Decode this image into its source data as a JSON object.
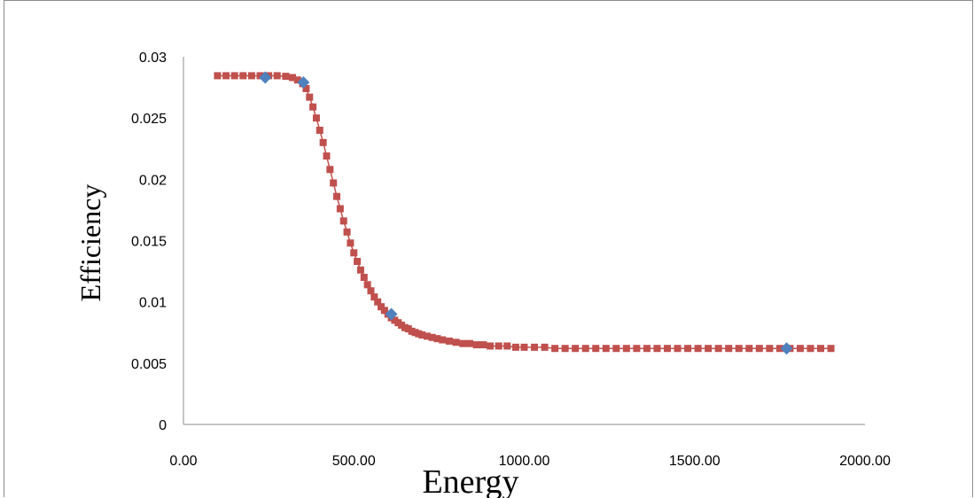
{
  "chart_data": {
    "type": "scatter",
    "title": "",
    "xlabel": "Energy",
    "ylabel": "Efficiency",
    "xlim": [
      0,
      2000
    ],
    "ylim": [
      0,
      0.03
    ],
    "x_ticks": [
      "0.00",
      "500.00",
      "1000.00",
      "1500.00",
      "2000.00"
    ],
    "y_ticks": [
      "0",
      "0.005",
      "0.01",
      "0.015",
      "0.02",
      "0.025",
      "0.03"
    ],
    "grid": false,
    "legend": "none",
    "series": [
      {
        "marker": "square",
        "color": "#C0504D",
        "x": [
          100,
          125,
          150,
          175,
          200,
          225,
          250,
          275,
          300,
          320,
          335,
          350,
          360,
          370,
          380,
          390,
          400,
          410,
          420,
          430,
          440,
          450,
          460,
          470,
          480,
          490,
          500,
          510,
          520,
          530,
          540,
          550,
          560,
          570,
          580,
          590,
          600,
          610,
          620,
          630,
          640,
          650,
          660,
          670,
          680,
          690,
          700,
          715,
          730,
          745,
          760,
          780,
          800,
          820,
          840,
          860,
          880,
          900,
          925,
          950,
          975,
          1000,
          1030,
          1060,
          1090,
          1120,
          1150,
          1180,
          1210,
          1240,
          1270,
          1300,
          1330,
          1360,
          1390,
          1420,
          1450,
          1480,
          1510,
          1540,
          1570,
          1600,
          1630,
          1660,
          1690,
          1720,
          1750,
          1780,
          1810,
          1840,
          1870,
          1900
        ],
        "y": [
          0.02845,
          0.02845,
          0.02845,
          0.02845,
          0.02845,
          0.02845,
          0.02845,
          0.02845,
          0.0284,
          0.0283,
          0.0281,
          0.0278,
          0.0274,
          0.0267,
          0.0259,
          0.025,
          0.024,
          0.023,
          0.0219,
          0.0208,
          0.0197,
          0.0186,
          0.0176,
          0.0166,
          0.0157,
          0.0148,
          0.014,
          0.0133,
          0.0126,
          0.012,
          0.0114,
          0.0109,
          0.0104,
          0.01,
          0.0096,
          0.0093,
          0.009,
          0.0087,
          0.0085,
          0.0083,
          0.0081,
          0.0079,
          0.0078,
          0.0076,
          0.0075,
          0.0074,
          0.0073,
          0.0072,
          0.0071,
          0.007,
          0.0069,
          0.0068,
          0.0067,
          0.0066,
          0.0066,
          0.0065,
          0.0065,
          0.0064,
          0.0064,
          0.0064,
          0.0063,
          0.0063,
          0.0063,
          0.0063,
          0.0062,
          0.0062,
          0.0062,
          0.0062,
          0.0062,
          0.0062,
          0.0062,
          0.0062,
          0.0062,
          0.0062,
          0.0062,
          0.0062,
          0.0062,
          0.0062,
          0.0062,
          0.0062,
          0.0062,
          0.0062,
          0.0062,
          0.0062,
          0.0062,
          0.0062,
          0.0062,
          0.0062,
          0.0062,
          0.0062,
          0.0062,
          0.0062
        ]
      },
      {
        "marker": "diamond",
        "color": "#4F81BD",
        "x": [
          240,
          352,
          610,
          1770
        ],
        "y": [
          0.0283,
          0.0279,
          0.009,
          0.0062
        ]
      }
    ]
  }
}
